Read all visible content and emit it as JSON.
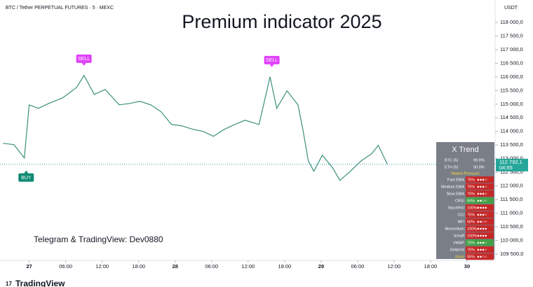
{
  "chart_data": {
    "type": "line",
    "header": "BTC / Tether PERPETUAL FUTURES · 5 · MEXC",
    "title": "Premium indicator 2025",
    "y_unit": "USDT",
    "annotation": "Telegram & TradingView: Dev0880",
    "brand": "TradingView",
    "xlim": [
      -4.8,
      76.5
    ],
    "ylim": [
      109270,
      118460
    ],
    "xticks": [
      {
        "value": 0,
        "label": "27"
      },
      {
        "value": 6,
        "label": "06:00"
      },
      {
        "value": 12,
        "label": "12:00"
      },
      {
        "value": 18,
        "label": "18:00"
      },
      {
        "value": 24,
        "label": "28"
      },
      {
        "value": 30,
        "label": "06:00"
      },
      {
        "value": 36,
        "label": "12:00"
      },
      {
        "value": 42,
        "label": "18:00"
      },
      {
        "value": 48,
        "label": "29"
      },
      {
        "value": 54,
        "label": "06:00"
      },
      {
        "value": 60,
        "label": "12:00"
      },
      {
        "value": 66,
        "label": "18:00"
      },
      {
        "value": 72,
        "label": "30"
      }
    ],
    "yticks": [
      {
        "value": 109500,
        "label": "109 500,0"
      },
      {
        "value": 110000,
        "label": "110 000,0"
      },
      {
        "value": 110500,
        "label": "110 500,0"
      },
      {
        "value": 111000,
        "label": "111 000,0"
      },
      {
        "value": 111500,
        "label": "111 500,0"
      },
      {
        "value": 112000,
        "label": "112 000,0"
      },
      {
        "value": 112500,
        "label": "112 500,0"
      },
      {
        "value": 113000,
        "label": "113 000,0"
      },
      {
        "value": 113500,
        "label": "113 500,0"
      },
      {
        "value": 114000,
        "label": "114 000,0"
      },
      {
        "value": 114500,
        "label": "114 500,0"
      },
      {
        "value": 115000,
        "label": "115 000,0"
      },
      {
        "value": 115500,
        "label": "115 500,0"
      },
      {
        "value": 116000,
        "label": "116 000,0"
      },
      {
        "value": 116500,
        "label": "116 500,0"
      },
      {
        "value": 117000,
        "label": "117 000,0"
      },
      {
        "value": 117500,
        "label": "117 500,0"
      },
      {
        "value": 118000,
        "label": "118 000,0"
      }
    ],
    "x": [
      -4.3,
      -2.5,
      -0.8,
      0,
      1.5,
      3.2,
      5.5,
      7.8,
      9.0,
      10.7,
      12.5,
      14.8,
      16.5,
      18.2,
      20.0,
      21.7,
      23.4,
      25.1,
      26.9,
      28.6,
      30.3,
      32.1,
      33.8,
      35.5,
      37.8,
      39.6,
      40.7,
      42.4,
      44.2,
      45.0,
      45.9,
      46.8,
      48.2,
      49.9,
      51.1,
      52.8,
      54.6,
      56.3,
      57.4,
      58.9
    ],
    "series": [
      {
        "name": "BTCUSDT",
        "color": "#3a8f7c",
        "values": [
          113564,
          113513,
          113026,
          114974,
          114846,
          115026,
          115231,
          115615,
          116051,
          115359,
          115538,
          114974,
          115026,
          115103,
          114974,
          114718,
          114256,
          114205,
          114077,
          114000,
          113821,
          114077,
          114256,
          114410,
          114256,
          116000,
          114846,
          115487,
          114974,
          114077,
          112923,
          112538,
          113128,
          112667,
          112205,
          112538,
          112923,
          113179,
          113487,
          112792
        ]
      }
    ],
    "last_price": {
      "value": 112792.1,
      "label": "112 792,1",
      "timer": "04:55"
    },
    "signals": [
      {
        "x": -0.5,
        "label": "BUY",
        "color": "#0e8a72",
        "side": "below"
      },
      {
        "x": 9.0,
        "label": "SELL",
        "color": "#e040fb",
        "side": "above"
      },
      {
        "x": 39.9,
        "label": "SELL",
        "color": "#e040fb",
        "side": "above"
      }
    ],
    "panel": {
      "title": "X Trend",
      "pairs": [
        [
          "BTC (5)",
          "99.9%"
        ],
        [
          "ETH (5)",
          "50.9%"
        ]
      ],
      "section": "Market Pressure",
      "rows": [
        {
          "name": "Fast EMA",
          "pct": "75%",
          "dots": "●●●○",
          "color": "#c62828"
        },
        {
          "name": "Medium EMA",
          "pct": "75%",
          "dots": "●●●○",
          "color": "#c62828"
        },
        {
          "name": "Slow EMA",
          "pct": "75%",
          "dots": "●●●○",
          "color": "#c62828"
        },
        {
          "name": "CRSI",
          "pct": "50%",
          "dots": "●●○○",
          "color": "#43a047"
        },
        {
          "name": "StochRSI",
          "pct": "100%",
          "dots": "●●●●",
          "color": "#c62828"
        },
        {
          "name": "CCI",
          "pct": "75%",
          "dots": "●●●○",
          "color": "#c62828"
        },
        {
          "name": "MFI",
          "pct": "50%",
          "dots": "●●○○",
          "color": "#c62828"
        },
        {
          "name": "Momentum",
          "pct": "100%",
          "dots": "●●●●",
          "color": "#c62828"
        },
        {
          "name": "Schaff",
          "pct": "100%",
          "dots": "●●●●",
          "color": "#c62828"
        },
        {
          "name": "VWAP",
          "pct": "75%",
          "dots": "●●●○",
          "color": "#43a047"
        },
        {
          "name": "DeltaVol",
          "pct": "75%",
          "dots": "●●●○",
          "color": "#c62828"
        },
        {
          "name": "Short",
          "pct": "55%",
          "dots": "●●○○",
          "color": "#c62828"
        }
      ]
    }
  }
}
